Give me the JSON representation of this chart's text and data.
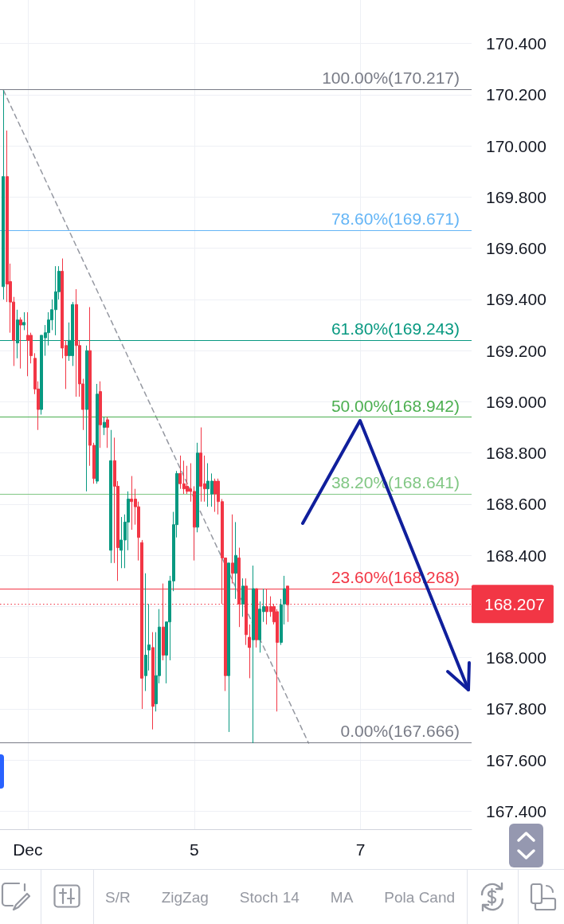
{
  "chart_data": {
    "type": "candlestick",
    "categories": [
      null,
      null,
      null,
      null,
      null,
      null,
      null,
      null,
      "Dec",
      null,
      null,
      null,
      null,
      null,
      null,
      null,
      null,
      null,
      null,
      null,
      null,
      null,
      null,
      null,
      null,
      null,
      null,
      null,
      null,
      null,
      null,
      null,
      null,
      null,
      null,
      null,
      null,
      null,
      null,
      null,
      null,
      null,
      null,
      null,
      null,
      null,
      null,
      null,
      null,
      null,
      null,
      null,
      null,
      null,
      null,
      null,
      "5",
      null,
      null,
      null,
      null,
      null,
      null,
      null,
      null,
      null,
      null,
      null,
      null,
      null,
      null,
      null,
      null,
      null,
      null,
      null,
      null,
      null,
      null,
      null,
      null,
      null,
      null,
      null,
      null,
      null,
      null,
      null,
      null,
      null,
      null,
      null,
      null,
      null,
      null,
      null,
      null,
      null,
      null,
      null,
      null,
      null,
      null,
      null,
      "7",
      null,
      null,
      null,
      null,
      null,
      null,
      null,
      null,
      null,
      null,
      null,
      null,
      null,
      null,
      null,
      null,
      null,
      null,
      null,
      null,
      null,
      null,
      null,
      null,
      null,
      null,
      null,
      null,
      null,
      null,
      null,
      null
    ],
    "ohlc": [
      null,
      [
        169.45,
        170.217,
        169.4,
        169.88
      ],
      [
        169.88,
        170.06,
        169.39,
        169.46
      ],
      [
        169.47,
        169.54,
        169.27,
        169.39
      ],
      [
        169.39,
        169.41,
        169.14,
        169.24
      ],
      [
        169.23,
        169.36,
        169.17,
        169.32
      ],
      [
        169.32,
        169.33,
        169.13,
        169.3
      ],
      [
        169.3,
        169.35,
        169.28,
        169.31
      ],
      [
        169.26,
        169.35,
        169.1,
        169.24
      ],
      [
        169.26,
        169.27,
        169.15,
        169.18
      ],
      [
        169.17,
        169.19,
        169.03,
        169.05
      ],
      [
        169.05,
        169.08,
        168.89,
        168.97
      ],
      [
        168.97,
        169.26,
        168.95,
        169.26
      ],
      [
        169.25,
        169.3,
        169.18,
        169.27
      ],
      [
        169.27,
        169.35,
        169.22,
        169.32
      ],
      [
        169.32,
        169.4,
        169.28,
        169.36
      ],
      [
        169.36,
        169.53,
        169.26,
        169.43
      ],
      [
        169.43,
        169.53,
        169.4,
        169.51
      ],
      [
        169.51,
        169.56,
        169.17,
        169.21
      ],
      [
        169.22,
        169.24,
        169.05,
        169.18
      ],
      [
        169.18,
        169.31,
        169.16,
        169.24
      ],
      [
        169.18,
        169.39,
        169.14,
        169.38
      ],
      [
        169.38,
        169.44,
        169.02,
        169.22
      ],
      [
        169.22,
        169.24,
        169.02,
        169.07
      ],
      [
        169.07,
        169.09,
        168.89,
        168.97
      ],
      [
        168.97,
        169.22,
        168.65,
        169.2
      ],
      [
        169.2,
        169.37,
        168.75,
        168.83
      ],
      [
        168.83,
        168.84,
        168.68,
        168.7
      ],
      [
        168.69,
        169.07,
        168.68,
        169.03
      ],
      [
        169.04,
        169.08,
        168.82,
        168.91
      ],
      [
        168.9,
        168.94,
        168.87,
        168.92
      ],
      [
        168.93,
        168.94,
        168.82,
        168.9
      ],
      [
        168.42,
        168.89,
        168.37,
        168.77
      ],
      [
        168.77,
        168.86,
        168.37,
        168.67
      ],
      [
        168.67,
        168.69,
        168.3,
        168.43
      ],
      [
        168.42,
        168.55,
        168.35,
        168.46
      ],
      [
        168.46,
        168.56,
        168.35,
        168.53
      ],
      [
        168.53,
        168.65,
        168.42,
        168.62
      ],
      [
        168.62,
        168.71,
        168.5,
        168.61
      ],
      [
        168.62,
        168.66,
        168.52,
        168.59
      ],
      [
        168.59,
        168.61,
        168.38,
        168.47
      ],
      [
        168.45,
        168.46,
        167.8,
        167.92
      ],
      [
        167.93,
        168.33,
        167.87,
        168.01
      ],
      [
        168.03,
        168.21,
        167.95,
        168.05
      ],
      [
        168.04,
        168.1,
        167.72,
        167.81
      ],
      [
        167.82,
        168.1,
        167.79,
        167.93
      ],
      [
        167.93,
        168.19,
        167.9,
        168.12
      ],
      [
        168.12,
        168.29,
        167.99,
        168.01
      ],
      [
        168.01,
        168.14,
        167.9,
        168.14
      ],
      [
        168.14,
        168.32,
        167.99,
        168.3
      ],
      [
        168.3,
        168.57,
        168.26,
        168.52
      ],
      [
        168.52,
        168.73,
        168.47,
        168.72
      ],
      [
        168.72,
        168.79,
        168.66,
        168.68
      ],
      [
        168.68,
        168.77,
        168.64,
        168.66
      ],
      [
        168.67,
        168.75,
        168.64,
        168.65
      ],
      [
        168.66,
        168.76,
        168.61,
        168.65
      ],
      [
        168.65,
        168.67,
        168.38,
        168.51
      ],
      [
        168.51,
        168.84,
        168.49,
        168.8
      ],
      [
        168.8,
        168.9,
        168.61,
        168.67
      ],
      [
        168.68,
        168.79,
        168.61,
        168.66
      ],
      [
        168.66,
        168.76,
        168.59,
        168.69
      ],
      [
        168.64,
        168.72,
        168.59,
        168.69
      ],
      [
        168.69,
        168.7,
        168.57,
        168.64
      ],
      [
        168.69,
        168.7,
        168.56,
        168.61
      ],
      [
        168.61,
        168.62,
        168.21,
        168.39
      ],
      [
        168.39,
        168.39,
        167.87,
        167.93
      ],
      [
        167.93,
        168.37,
        167.71,
        168.37
      ],
      [
        168.37,
        168.56,
        168.29,
        168.33
      ],
      [
        168.33,
        168.53,
        168.23,
        168.4
      ],
      [
        168.39,
        168.43,
        168.12,
        168.21
      ],
      [
        168.21,
        168.31,
        168.16,
        168.28
      ],
      [
        168.28,
        168.31,
        168.05,
        168.09
      ],
      [
        168.08,
        168.13,
        167.92,
        168.04
      ],
      [
        168.07,
        168.36,
        167.666,
        168.27
      ],
      [
        168.27,
        168.27,
        168.04,
        168.07
      ],
      [
        168.07,
        168.22,
        168.02,
        168.19
      ],
      [
        168.18,
        168.27,
        168.14,
        168.2
      ],
      [
        168.2,
        168.27,
        168.13,
        168.18
      ],
      [
        168.2,
        168.24,
        168.16,
        168.18
      ],
      [
        168.2,
        168.21,
        168.13,
        168.14
      ],
      [
        168.18,
        168.19,
        167.79,
        168.06
      ],
      [
        168.06,
        168.23,
        168.05,
        168.207
      ],
      [
        168.21,
        168.32,
        168.13,
        168.27
      ],
      [
        168.28,
        168.28,
        168.14,
        168.207
      ],
      null,
      null,
      null,
      null,
      null,
      null,
      null,
      null,
      null,
      null,
      null,
      null,
      null,
      null,
      null,
      null,
      null,
      null,
      null,
      null,
      null,
      null,
      null,
      null,
      null,
      null,
      null,
      null,
      null,
      null,
      null,
      null,
      null,
      null,
      null,
      null,
      null,
      null,
      null,
      null,
      null,
      null,
      null,
      null,
      null,
      null,
      null,
      null,
      null,
      null,
      null,
      null,
      null
    ],
    "colors": [
      null,
      "#089981",
      "#f23645",
      "#f23645",
      "#f23645",
      "#089981",
      "#f23645",
      "#089981",
      "#f23645",
      "#f23645",
      "#f23645",
      "#f23645",
      "#089981",
      "#089981",
      "#089981",
      "#089981",
      "#089981",
      "#089981",
      "#f23645",
      "#f23645",
      "#089981",
      "#089981",
      "#f23645",
      "#f23645",
      "#f23645",
      "#089981",
      "#f23645",
      "#f23645",
      "#089981",
      "#f23645",
      "#089981",
      "#f23645",
      "#089981",
      "#f23645",
      "#f23645",
      "#089981",
      "#089981",
      "#089981",
      "#f23645",
      "#f23645",
      "#f23645",
      "#f23645",
      "#089981",
      "#089981",
      "#f23645",
      "#089981",
      "#089981",
      "#f23645",
      "#089981",
      "#089981",
      "#089981",
      "#089981",
      "#f23645",
      "#f23645",
      "#f23645",
      "#f23645",
      "#f23645",
      "#089981",
      "#f23645",
      "#f23645",
      "#089981",
      "#089981",
      "#f23645",
      "#f23645",
      "#f23645",
      "#f23645",
      "#089981",
      "#f23645",
      "#089981",
      "#f23645",
      "#089981",
      "#f23645",
      "#f23645",
      "#089981",
      "#f23645",
      "#089981",
      "#089981",
      "#f23645",
      "#f23645",
      "#f23645",
      "#f23645",
      "#089981",
      "#089981",
      "#f23645",
      null,
      null,
      null,
      null,
      null,
      null,
      null,
      null,
      null,
      null,
      null,
      null,
      null,
      null,
      null,
      null,
      null,
      null,
      null,
      null,
      null,
      null,
      null,
      null,
      null,
      null,
      null,
      null,
      null,
      null,
      null,
      null,
      null,
      null,
      null,
      null,
      null,
      null,
      null,
      null,
      null,
      null,
      null,
      null,
      null,
      null,
      null,
      null,
      null,
      null,
      null,
      null,
      null
    ],
    "series": [
      {
        "type": "line",
        "values": [
          null,
          170.217,
          null,
          null,
          null,
          null,
          null,
          null,
          null,
          null,
          null,
          null,
          null,
          null,
          null,
          null,
          null,
          null,
          null,
          null,
          null,
          null,
          null,
          null,
          null,
          null,
          null,
          null,
          null,
          null,
          null,
          null,
          null,
          null,
          null,
          null,
          null,
          null,
          null,
          null,
          null,
          null,
          null,
          null,
          null,
          null,
          null,
          null,
          null,
          null,
          null,
          null,
          null,
          null,
          null,
          null,
          null,
          null,
          null,
          null,
          null,
          null,
          null,
          null,
          null,
          null,
          null,
          null,
          null,
          null,
          null,
          null,
          null,
          null,
          null,
          null,
          null,
          null,
          null,
          null,
          null,
          null,
          null,
          null,
          null,
          null,
          null,
          null,
          null,
          167.666,
          null,
          null,
          null,
          null,
          null,
          null,
          null,
          null,
          null,
          null,
          null,
          null,
          null,
          null,
          null,
          null,
          null,
          null,
          null,
          null,
          null,
          null,
          null,
          null,
          null,
          null,
          null,
          null,
          null,
          null,
          null,
          null,
          null,
          null,
          null,
          null,
          null,
          null,
          null,
          null,
          null,
          null,
          null,
          null,
          null,
          null,
          null
        ],
        "color": "#9598a1",
        "line_style": "dashed"
      }
    ],
    "marker": "none",
    "ylim": [
      167.33,
      170.57
    ],
    "yticks": [
      {
        "value": 167.4,
        "label": "167.400"
      },
      {
        "value": 167.6,
        "label": "167.600"
      },
      {
        "value": 167.8,
        "label": "167.800"
      },
      {
        "value": 168,
        "label": "168.000"
      },
      {
        "value": 168.2,
        "label": null
      },
      {
        "value": 168.4,
        "label": "168.400"
      },
      {
        "value": 168.6,
        "label": "168.600"
      },
      {
        "value": 168.8,
        "label": "168.800"
      },
      {
        "value": 169,
        "label": "169.000"
      },
      {
        "value": 169.2,
        "label": "169.200"
      },
      {
        "value": 169.4,
        "label": "169.400"
      },
      {
        "value": 169.6,
        "label": "169.600"
      },
      {
        "value": 169.8,
        "label": "169.800"
      },
      {
        "value": 170,
        "label": "170.000"
      },
      {
        "value": 170.2,
        "label": "170.200"
      },
      {
        "value": 170.4,
        "label": "170.400"
      }
    ],
    "grid": true,
    "ref_lines": [
      {
        "axis": "y",
        "value": 170.217,
        "label": "100.00%(170.217)",
        "color": "#787b86"
      },
      {
        "axis": "y",
        "value": 169.671,
        "label": "78.60%(169.671)",
        "color": "#64b5f6"
      },
      {
        "axis": "y",
        "value": 169.243,
        "label": "61.80%(169.243)",
        "color": "#089981"
      },
      {
        "axis": "y",
        "value": 168.942,
        "label": "50.00%(168.942)",
        "color": "#4caf50"
      },
      {
        "axis": "y",
        "value": 168.641,
        "label": "38.20%(168.641)",
        "color": "#81c784"
      },
      {
        "axis": "y",
        "value": 168.268,
        "label": "23.60%(168.268)",
        "color": "#f23645"
      },
      {
        "axis": "y",
        "value": 167.666,
        "label": "0.00%(167.666)",
        "color": "#787b86"
      },
      {
        "axis": "y",
        "value": 168.207,
        "label": "168.207",
        "color": "#f23645",
        "line_style": "dotted"
      }
    ],
    "annotations": [
      "S/R",
      "ZigZag",
      "Stoch 14",
      "MA",
      "Pola Cand"
    ]
  }
}
